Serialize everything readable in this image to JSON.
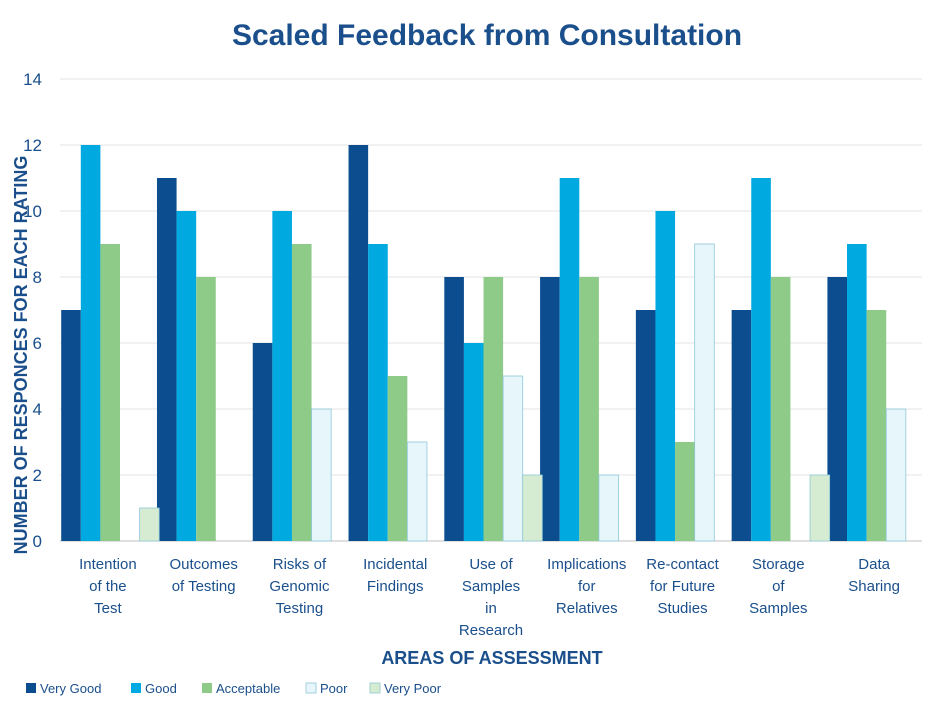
{
  "chart_data": {
    "type": "bar",
    "title": "Scaled Feedback from Consultation",
    "xlabel": "AREAS OF ASSESSMENT",
    "ylabel": "NUMBER OF RESPONCES FOR EACH RATING",
    "ylim": [
      0,
      14
    ],
    "yticks": [
      0,
      2,
      4,
      6,
      8,
      10,
      12,
      14
    ],
    "grid": true,
    "legend_position": "bottom-left",
    "categories": [
      [
        "Intention",
        "of the",
        "Test"
      ],
      [
        "Outcomes",
        "of Testing"
      ],
      [
        "Risks of",
        "Genomic",
        "Testing"
      ],
      [
        "Incidental",
        "Findings"
      ],
      [
        "Use of",
        "Samples",
        "in",
        "Research"
      ],
      [
        "Implications",
        "for",
        "Relatives"
      ],
      [
        "Re-contact",
        "for Future",
        "Studies"
      ],
      [
        "Storage",
        "of",
        "Samples"
      ],
      [
        "Data",
        "Sharing"
      ]
    ],
    "series": [
      {
        "name": "Very Good",
        "color": "#0b4d8f",
        "values": [
          7,
          11,
          6,
          12,
          8,
          8,
          7,
          7,
          8
        ]
      },
      {
        "name": "Good",
        "color": "#00a9e0",
        "values": [
          12,
          10,
          10,
          9,
          6,
          11,
          10,
          11,
          9
        ]
      },
      {
        "name": "Acceptable",
        "color": "#8ecb88",
        "values": [
          9,
          8,
          9,
          5,
          8,
          8,
          3,
          8,
          7
        ]
      },
      {
        "name": "Poor",
        "color": "#e6f6fb",
        "values": [
          0,
          0,
          4,
          3,
          5,
          2,
          9,
          0,
          4
        ]
      },
      {
        "name": "Very Poor",
        "color": "#d6ecd2",
        "values": [
          1,
          0,
          0,
          0,
          2,
          0,
          0,
          2,
          0
        ]
      }
    ]
  }
}
